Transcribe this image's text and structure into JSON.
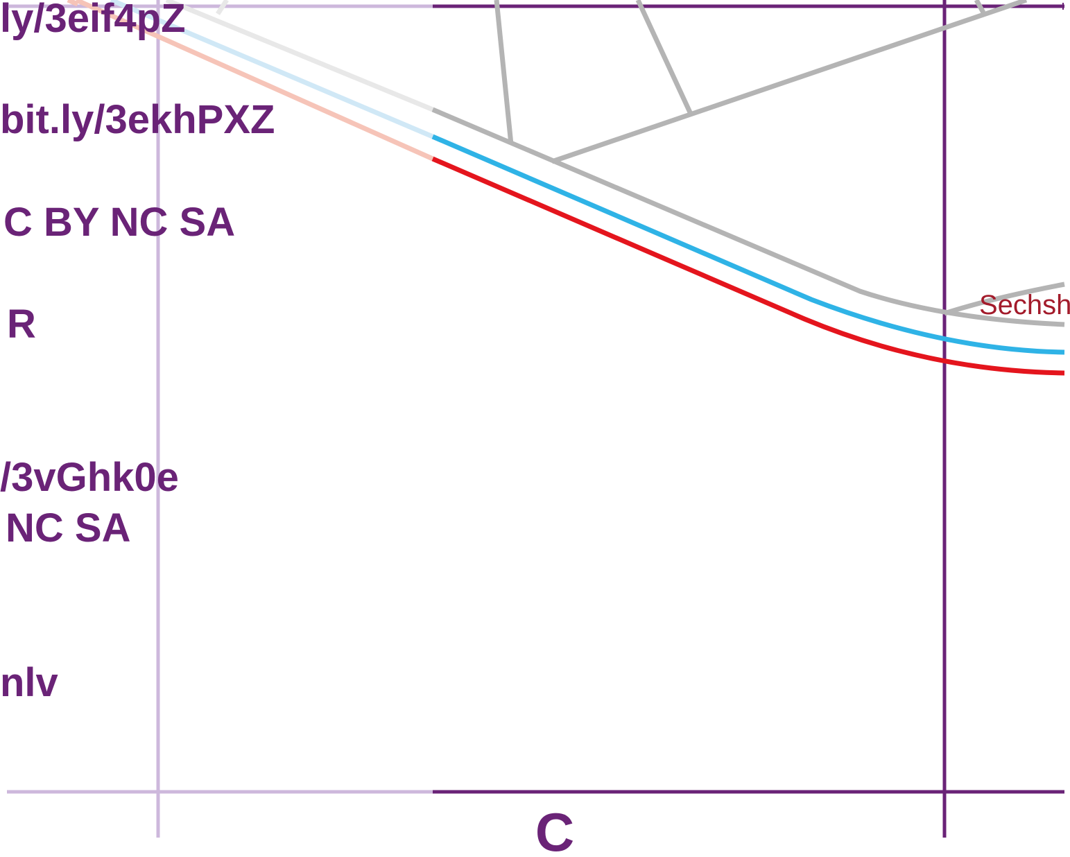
{
  "colors": {
    "frame": "#6a2377",
    "frame_faded": "#cdb8dc",
    "line_red": "#e4151d",
    "line_red_faded": "#f6c4b8",
    "line_blue": "#2fb3e6",
    "line_blue_faded": "#d0e8f6",
    "line_grey": "#b4b4b4",
    "line_grey_faded": "#e8e8e8",
    "station_label": "#a31b2b"
  },
  "credits": [
    "ly/3eif4pZ",
    "bit.ly/3ekhPXZ",
    "C BY NC SA",
    "R",
    "/3vGhk0e",
    "NC SA",
    "nlv"
  ],
  "grid": {
    "column_label": "C"
  },
  "lines": [
    {
      "name": "red-line",
      "color_key": "line_red"
    },
    {
      "name": "blue-line",
      "color_key": "line_blue"
    },
    {
      "name": "grey-line",
      "color_key": "line_grey"
    }
  ],
  "stations": [
    {
      "label": "Sechsh"
    }
  ]
}
